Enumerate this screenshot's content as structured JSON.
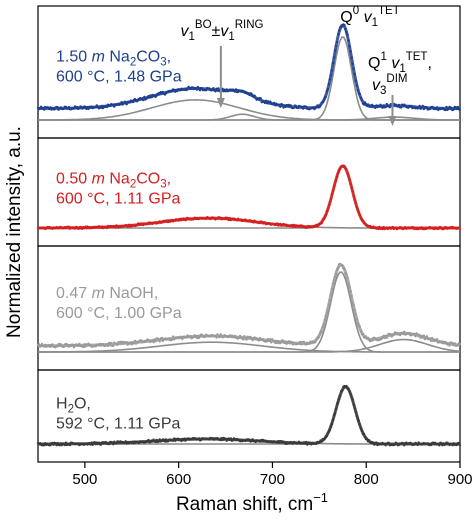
{
  "chart_data": {
    "type": "line",
    "xlabel_main": "Raman shift, cm",
    "xlabel_sup": "−1",
    "ylabel": "Normalized intensity, a.u.",
    "xlim": [
      450,
      900
    ],
    "xticks": [
      500,
      600,
      700,
      800,
      900
    ],
    "peak_annotations": [
      {
        "id": "bo-ring",
        "parts": [
          [
            "v",
            "i"
          ],
          [
            "1",
            "sub"
          ],
          [
            "BO",
            "sup"
          ],
          [
            "±",
            "n"
          ],
          [
            "v",
            "i"
          ],
          [
            "1",
            "sub"
          ],
          [
            "RING",
            "sup"
          ]
        ],
        "x": 645,
        "panel": 0
      },
      {
        "id": "q0",
        "parts": [
          [
            "Q",
            "n"
          ],
          [
            "0",
            "sup"
          ],
          [
            " ",
            "n"
          ],
          [
            "v",
            "i"
          ],
          [
            "1",
            "sub"
          ],
          [
            "TET",
            "sup"
          ]
        ],
        "x": 775,
        "panel": 0
      },
      {
        "id": "q1",
        "parts": [
          [
            "Q",
            "n"
          ],
          [
            "1",
            "sup"
          ],
          [
            " ",
            "n"
          ],
          [
            "v",
            "i"
          ],
          [
            "1",
            "sub"
          ],
          [
            "TET",
            "sup"
          ],
          [
            ",",
            "n"
          ]
        ],
        "parts2": [
          [
            "v",
            "i"
          ],
          [
            "3",
            "sub"
          ],
          [
            "DIM",
            "sup"
          ]
        ],
        "x": 828,
        "panel": 0
      }
    ],
    "panels": [
      {
        "label_parts": [
          [
            "1.50 ",
            "n"
          ],
          [
            "m",
            "i"
          ],
          [
            " Na",
            "n"
          ],
          [
            "2",
            "sub"
          ],
          [
            "CO",
            "n"
          ],
          [
            "3",
            "sub"
          ],
          [
            ",",
            "n"
          ]
        ],
        "label_line2": "600 °C, 1.48 GPa",
        "color": "#1f3f8f",
        "baseline": 0.12,
        "noise": 0.018,
        "components": [
          {
            "center": 775,
            "height": 0.87,
            "fwhm": 22
          },
          {
            "center": 618,
            "height": 0.21,
            "fwhm": 110
          },
          {
            "center": 668,
            "height": 0.06,
            "fwhm": 30
          },
          {
            "center": 830,
            "height": 0.03,
            "fwhm": 50
          }
        ]
      },
      {
        "label_parts": [
          [
            "0.50 ",
            "n"
          ],
          [
            "m",
            "i"
          ],
          [
            " Na",
            "n"
          ],
          [
            "2",
            "sub"
          ],
          [
            "CO",
            "n"
          ],
          [
            "3",
            "sub"
          ],
          [
            ",",
            "n"
          ]
        ],
        "label_line2": "600 °C, 1.11 GPa",
        "color": "#d42020",
        "baseline": 0.0,
        "noise": 0.015,
        "components": [
          {
            "center": 775,
            "height": 0.82,
            "fwhm": 24
          },
          {
            "center": 632,
            "height": 0.13,
            "fwhm": 120
          }
        ]
      },
      {
        "label_parts": [
          [
            "0.47 ",
            "n"
          ],
          [
            "m",
            "i"
          ],
          [
            " NaOH,",
            "n"
          ]
        ],
        "label_line2": "600 °C, 1.00 GPa",
        "color": "#9a9a9a",
        "baseline": 0.07,
        "noise": 0.02,
        "components": [
          {
            "center": 773,
            "height": 0.9,
            "fwhm": 26
          },
          {
            "center": 635,
            "height": 0.11,
            "fwhm": 130
          },
          {
            "center": 840,
            "height": 0.14,
            "fwhm": 60
          }
        ]
      },
      {
        "label_parts": [
          [
            "H",
            "n"
          ],
          [
            "2",
            "sub"
          ],
          [
            "O,",
            "n"
          ]
        ],
        "label_line2": "592 °C, 1.11 GPa",
        "color": "#3a3a3a",
        "baseline": 0.0,
        "noise": 0.022,
        "components": [
          {
            "center": 778,
            "height": 0.92,
            "fwhm": 24
          },
          {
            "center": 630,
            "height": 0.08,
            "fwhm": 130
          }
        ]
      }
    ]
  }
}
